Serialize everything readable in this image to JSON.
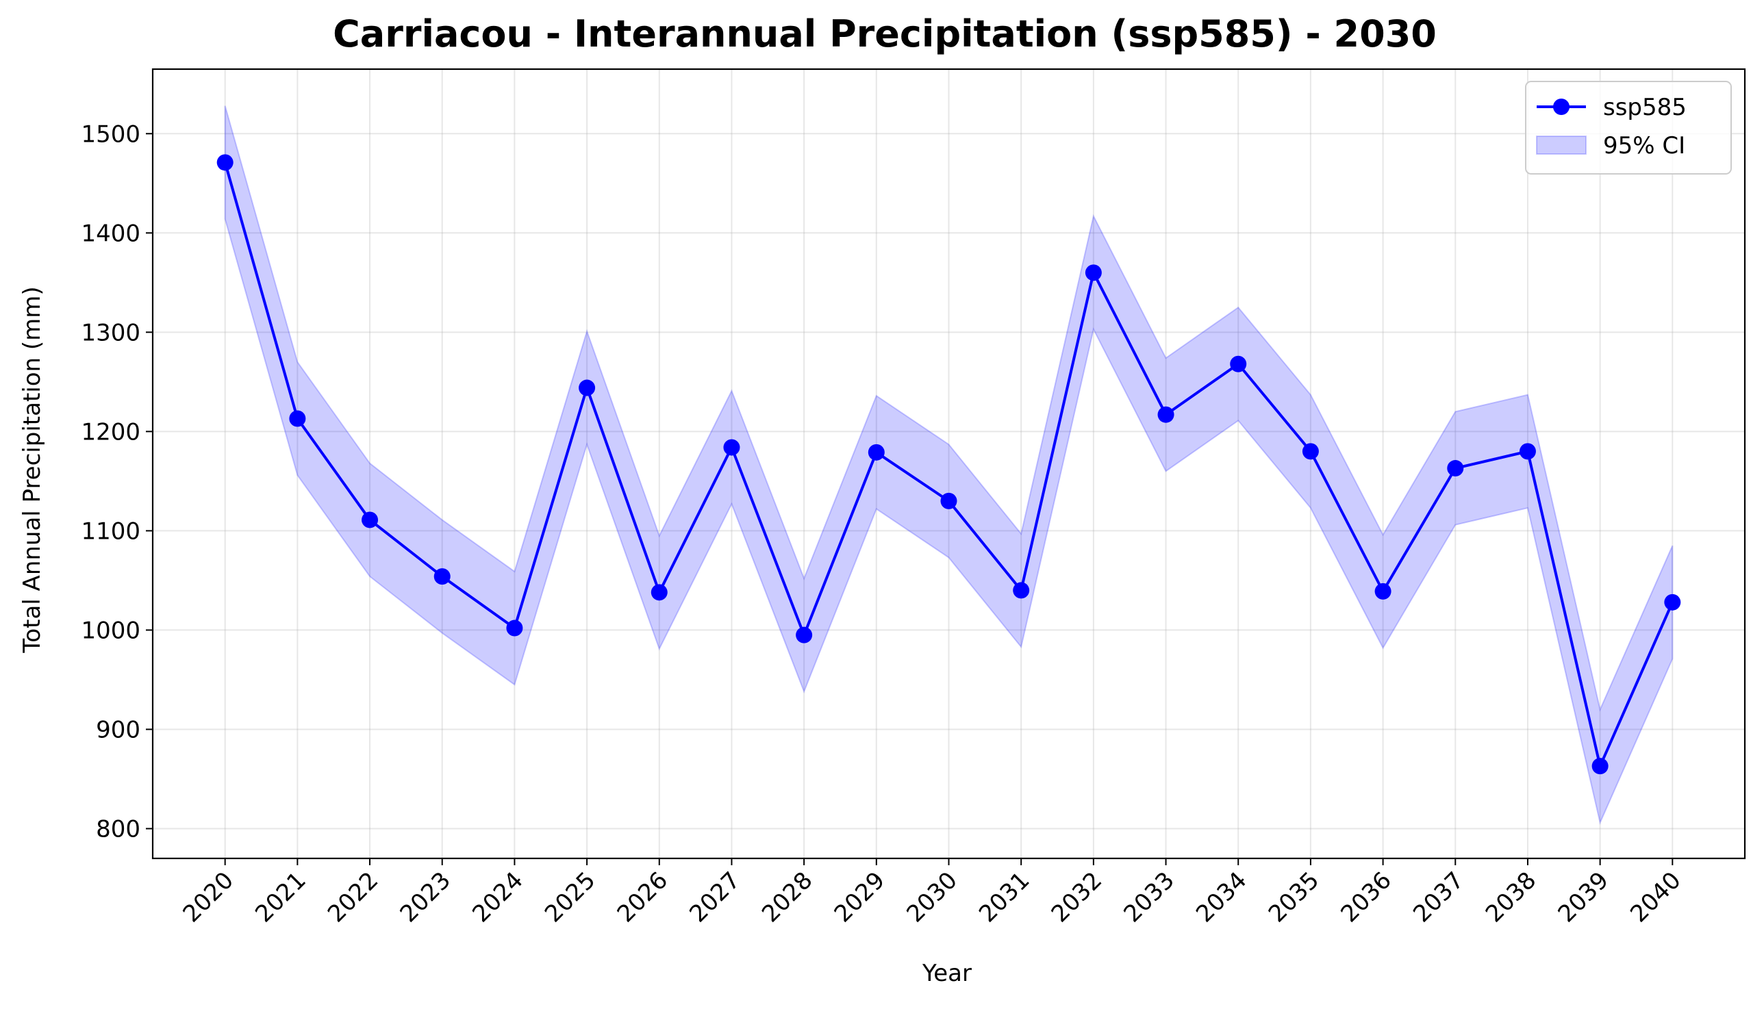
{
  "chart_data": {
    "type": "line",
    "title": "Carriacou - Interannual Precipitation (ssp585) - 2030",
    "xlabel": "Year",
    "ylabel": "Total Annual Precipitation (mm)",
    "x": [
      2020,
      2021,
      2022,
      2023,
      2024,
      2025,
      2026,
      2027,
      2028,
      2029,
      2030,
      2031,
      2032,
      2033,
      2034,
      2035,
      2036,
      2037,
      2038,
      2039,
      2040
    ],
    "x_tick_labels": [
      "2020",
      "2021",
      "2022",
      "2023",
      "2024",
      "2025",
      "2026",
      "2027",
      "2028",
      "2029",
      "2030",
      "2031",
      "2032",
      "2033",
      "2034",
      "2035",
      "2036",
      "2037",
      "2038",
      "2039",
      "2040"
    ],
    "xlim": [
      2019,
      2041
    ],
    "ylim": [
      770,
      1565
    ],
    "y_ticks": [
      800,
      900,
      1000,
      1100,
      1200,
      1300,
      1400,
      1500
    ],
    "y_tick_labels": [
      "800",
      "900",
      "1000",
      "1100",
      "1200",
      "1300",
      "1400",
      "1500"
    ],
    "grid": true,
    "legend_position": "top-right",
    "series": [
      {
        "name": "ssp585",
        "color": "#0000ff",
        "marker": "circle",
        "values": [
          1471,
          1213,
          1111,
          1054,
          1002,
          1244,
          1038,
          1184,
          995,
          1179,
          1130,
          1040,
          1360,
          1217,
          1268,
          1180,
          1039,
          1163,
          1180,
          863,
          1028
        ]
      }
    ],
    "band": {
      "name": "95% CI",
      "color": "#0000ff",
      "lower": [
        1414,
        1156,
        1054,
        997,
        945,
        1187,
        981,
        1127,
        938,
        1122,
        1073,
        983,
        1303,
        1160,
        1211,
        1123,
        982,
        1106,
        1123,
        806,
        971
      ],
      "upper": [
        1528,
        1270,
        1168,
        1111,
        1059,
        1301,
        1095,
        1241,
        1052,
        1236,
        1187,
        1097,
        1417,
        1274,
        1325,
        1237,
        1096,
        1220,
        1237,
        920,
        1085
      ]
    }
  }
}
